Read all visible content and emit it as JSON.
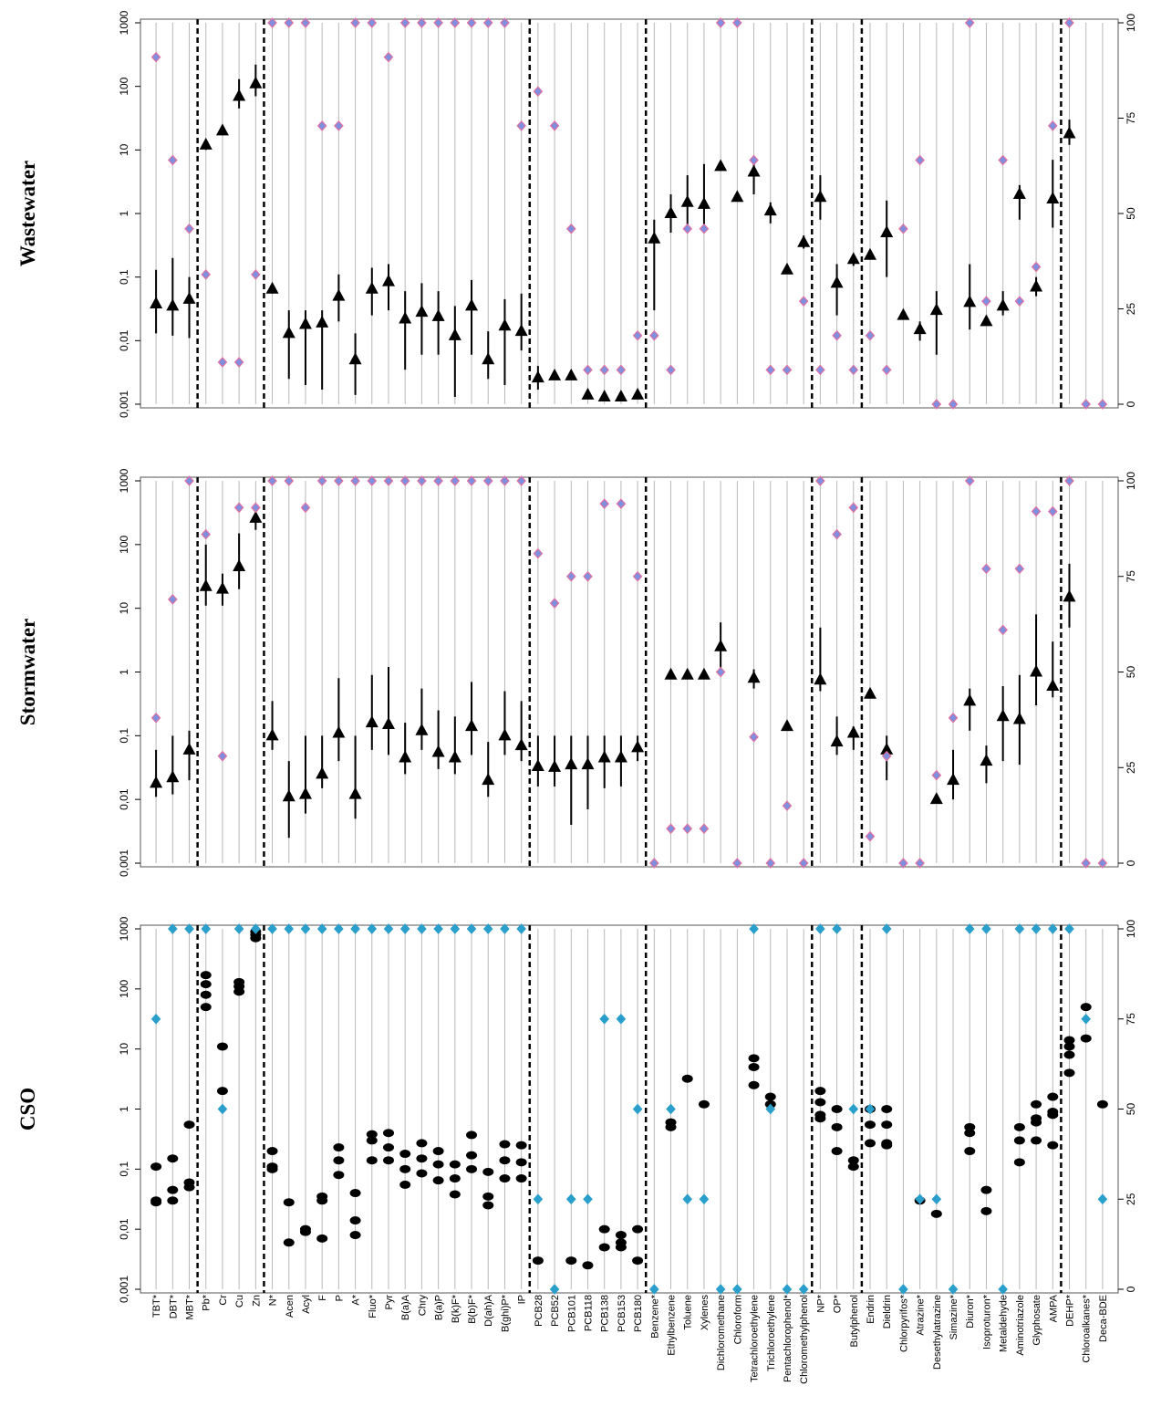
{
  "chart_data": [
    {
      "type": "range",
      "title": "Wastewater",
      "log": true,
      "ylim": [
        0.001,
        1000
      ],
      "yticks": [
        {
          "value": 0.001,
          "label": "0,001"
        },
        {
          "value": 0.01,
          "label": "0,01"
        },
        {
          "value": 0.1,
          "label": "0,1"
        },
        1,
        10,
        100,
        1000
      ],
      "y2lim": [
        0,
        100
      ],
      "y2ticks": [
        0,
        25,
        50,
        75,
        100
      ],
      "group_breaks": [
        3,
        7,
        23,
        30,
        40,
        43,
        55
      ],
      "series": [
        {
          "marker": "triangle",
          "color": "#000000",
          "values": [
            0.038,
            0.035,
            0.045,
            12,
            20,
            70,
            110,
            0.065,
            0.013,
            0.018,
            0.019,
            0.05,
            0.005,
            0.065,
            0.085,
            0.022,
            0.028,
            0.024,
            0.012,
            0.035,
            0.005,
            0.017,
            0.014,
            0.0026,
            0.0028,
            0.0028,
            0.0014,
            0.0013,
            0.0013,
            0.0014,
            0.4,
            1.0,
            1.5,
            1.4,
            5.5,
            1.8,
            4.5,
            1.1,
            0.13,
            0.35,
            1.8,
            0.08,
            0.19,
            0.22,
            0.5,
            0.025,
            0.015,
            0.03,
            null,
            0.04,
            0.02,
            0.035,
            2,
            0.07,
            1.7,
            18,
            null,
            null
          ],
          "max": [
            0.13,
            0.2,
            0.1,
            14,
            24,
            130,
            220,
            0.075,
            0.03,
            0.03,
            0.03,
            0.11,
            0.013,
            0.14,
            0.16,
            0.06,
            0.08,
            0.06,
            0.035,
            0.09,
            0.014,
            0.045,
            0.055,
            0.004,
            null,
            null,
            null,
            null,
            null,
            null,
            0.8,
            2,
            4,
            6,
            null,
            null,
            7,
            1.5,
            null,
            0.45,
            4,
            0.16,
            0.22,
            null,
            1.6,
            null,
            0.02,
            0.06,
            null,
            0.16,
            null,
            0.06,
            2.8,
            0.1,
            7,
            30,
            null,
            null
          ],
          "min": [
            0.013,
            0.012,
            0.011,
            10,
            17,
            45,
            70,
            0.055,
            0.0025,
            0.002,
            0.0017,
            0.02,
            0.0014,
            0.025,
            0.03,
            0.0035,
            0.006,
            0.006,
            0.0013,
            0.006,
            0.0025,
            0.002,
            0.007,
            0.0017,
            null,
            null,
            null,
            null,
            null,
            null,
            0.03,
            0.5,
            0.5,
            0.5,
            null,
            null,
            2,
            0.7,
            null,
            0.28,
            0.8,
            0.025,
            0.15,
            null,
            0.1,
            null,
            0.01,
            0.006,
            null,
            0.015,
            null,
            0.025,
            0.8,
            0.05,
            0.6,
            12,
            null,
            null
          ]
        },
        {
          "marker": "diamond",
          "axis": "y2",
          "color": "#7f8fe0",
          "stroke": "#e070a0",
          "values": [
            91,
            64,
            46,
            34,
            11,
            11,
            34,
            100,
            100,
            100,
            73,
            73,
            100,
            100,
            91,
            100,
            100,
            100,
            100,
            100,
            100,
            100,
            73,
            82,
            73,
            46,
            9,
            9,
            9,
            18,
            18,
            9,
            46,
            46,
            100,
            100,
            64,
            9,
            9,
            27,
            9,
            18,
            9,
            18,
            9,
            46,
            64,
            0,
            0,
            100,
            27,
            64,
            27,
            36,
            73,
            100,
            0,
            0
          ]
        }
      ]
    },
    {
      "type": "range",
      "title": "Stormwater",
      "log": true,
      "ylim": [
        0.001,
        1000
      ],
      "yticks": [
        {
          "value": 0.001,
          "label": "0,001"
        },
        {
          "value": 0.01,
          "label": "0,01"
        },
        {
          "value": 0.1,
          "label": "0,1"
        },
        1,
        10,
        100,
        1000
      ],
      "y2lim": [
        0,
        100
      ],
      "y2ticks": [
        0,
        25,
        50,
        75,
        100
      ],
      "group_breaks": [
        3,
        7,
        23,
        30,
        40,
        43,
        55
      ],
      "series": [
        {
          "marker": "triangle",
          "color": "#000000",
          "values": [
            0.018,
            0.022,
            0.06,
            22,
            20,
            45,
            260,
            0.1,
            0.011,
            0.012,
            0.025,
            0.11,
            0.012,
            0.16,
            0.15,
            0.045,
            0.12,
            0.055,
            0.045,
            0.14,
            0.02,
            0.1,
            0.07,
            0.033,
            0.032,
            0.035,
            0.035,
            0.045,
            0.045,
            0.065,
            null,
            0.9,
            0.9,
            0.9,
            2.5,
            null,
            0.8,
            null,
            0.14,
            null,
            0.75,
            0.08,
            0.11,
            0.45,
            0.06,
            null,
            null,
            0.01,
            0.02,
            0.35,
            0.04,
            0.2,
            0.18,
            1.0,
            0.6,
            15,
            null,
            null
          ],
          "max": [
            0.06,
            0.1,
            0.12,
            100,
            35,
            150,
            400,
            0.35,
            0.04,
            0.1,
            0.1,
            0.8,
            0.1,
            0.9,
            1.2,
            0.16,
            0.55,
            0.25,
            0.2,
            0.7,
            0.08,
            0.5,
            0.35,
            0.1,
            0.1,
            0.1,
            0.1,
            0.1,
            0.1,
            0.1,
            null,
            null,
            null,
            null,
            6,
            null,
            1.1,
            null,
            null,
            null,
            5,
            0.2,
            0.14,
            null,
            0.1,
            null,
            null,
            null,
            0.06,
            0.55,
            0.07,
            0.6,
            0.9,
            8,
            3,
            50,
            null,
            null
          ],
          "min": [
            0.011,
            0.012,
            0.02,
            11,
            11,
            20,
            170,
            0.06,
            0.0025,
            0.006,
            0.015,
            0.04,
            0.005,
            0.06,
            0.05,
            0.025,
            0.06,
            0.03,
            0.025,
            0.05,
            0.011,
            0.05,
            0.04,
            0.016,
            0.016,
            0.004,
            0.007,
            0.015,
            0.016,
            0.04,
            null,
            null,
            null,
            null,
            1,
            null,
            0.55,
            null,
            null,
            null,
            0.5,
            0.05,
            0.06,
            null,
            0.02,
            null,
            null,
            null,
            0.01,
            0.12,
            0.018,
            0.04,
            0.035,
            0.3,
            0.4,
            5,
            null,
            null
          ]
        },
        {
          "marker": "diamond",
          "axis": "y2",
          "color": "#7f8fe0",
          "stroke": "#e070a0",
          "values": [
            38,
            69,
            100,
            86,
            28,
            93,
            93,
            100,
            100,
            93,
            100,
            100,
            100,
            100,
            100,
            100,
            100,
            100,
            100,
            100,
            100,
            100,
            100,
            81,
            68,
            75,
            75,
            94,
            94,
            75,
            0,
            9,
            9,
            9,
            50,
            0,
            33,
            0,
            15,
            0,
            100,
            86,
            93,
            7,
            28,
            0,
            0,
            23,
            38,
            100,
            77,
            61,
            77,
            92,
            92,
            100,
            0,
            0
          ]
        }
      ]
    },
    {
      "type": "dots",
      "title": "CSO",
      "log": true,
      "ylim": [
        0.001,
        1000
      ],
      "yticks": [
        {
          "value": 0.001,
          "label": "0,001"
        },
        {
          "value": 0.01,
          "label": "0,01"
        },
        {
          "value": 0.1,
          "label": "0,1"
        },
        1,
        10,
        100,
        1000
      ],
      "y2lim": [
        0,
        100
      ],
      "y2ticks": [
        0,
        25,
        50,
        75,
        100
      ],
      "group_breaks": [
        3,
        7,
        23,
        30,
        40,
        43,
        55
      ],
      "categories": [
        "TBT*",
        "DBT*",
        "MBT*",
        "Pb*",
        "Cr",
        "Cu",
        "Zn",
        "N*",
        "Acen",
        "Acyl",
        "F",
        "P",
        "A*",
        "Fluo*",
        "Pyr",
        "B(a)A",
        "Chry",
        "B(a)P",
        "B(k)F*",
        "B(b)F*",
        "D(ah)A",
        "B(ghi)P*",
        "IP",
        "PCB28",
        "PCB52",
        "PCB101",
        "PCB118",
        "PCB138",
        "PCB153",
        "PCB180",
        "Benzene*",
        "Ethylbenzene",
        "Toluene",
        "Xylenes",
        "Dichloromethane",
        "Chloroform",
        "Tetrachloroethylene",
        "Trichloroethylene",
        "Pentachlorophenol*",
        "Chloromethylphenol",
        "NP*",
        "OP*",
        "Butylphenol",
        "Endrin",
        "Dieldrin",
        "Chlorpyrifos*",
        "Atrazine*",
        "Desethylatrazine",
        "Simazine*",
        "Diuron*",
        "Isoproturon*",
        "Metaldehyde",
        "Aminotriazole",
        "Glyphosate",
        "AMPA",
        "DEHP*",
        "Chloroalkanes*",
        "Deca-BDE"
      ],
      "series": [
        {
          "marker": "dot",
          "color": "#000000",
          "values": [
            [
              0.11,
              0.03,
              0.028
            ],
            [
              0.15,
              0.045,
              0.03
            ],
            [
              0.55,
              0.06,
              0.05
            ],
            [
              170,
              120,
              80,
              50
            ],
            [
              11,
              2
            ],
            [
              130,
              110,
              90
            ],
            [
              900,
              800,
              700
            ],
            [
              0.2,
              0.11,
              0.1
            ],
            [
              0.028,
              0.006
            ],
            [
              0.01,
              0.009
            ],
            [
              0.035,
              0.03,
              0.007
            ],
            [
              0.23,
              0.14,
              0.08
            ],
            [
              0.04,
              0.014,
              0.008
            ],
            [
              0.38,
              0.3,
              0.14
            ],
            [
              0.4,
              0.23,
              0.14
            ],
            [
              0.18,
              0.1,
              0.055
            ],
            [
              0.27,
              0.15,
              0.085
            ],
            [
              0.2,
              0.12,
              0.065
            ],
            [
              0.12,
              0.07,
              0.038
            ],
            [
              0.37,
              0.17,
              0.1
            ],
            [
              0.09,
              0.035,
              0.025
            ],
            [
              0.26,
              0.14,
              0.07
            ],
            [
              0.25,
              0.13,
              0.07
            ],
            [
              0.003
            ],
            null,
            [
              0.003
            ],
            [
              0.0025
            ],
            [
              0.01,
              0.005
            ],
            [
              0.008,
              0.006,
              0.005
            ],
            [
              0.01,
              0.003
            ],
            null,
            [
              0.6,
              0.5
            ],
            [
              3.2
            ],
            [
              1.2
            ],
            null,
            null,
            [
              7,
              5,
              2.5
            ],
            [
              1.6,
              1.2
            ],
            null,
            null,
            [
              2,
              1.3,
              0.8,
              0.7
            ],
            [
              1,
              0.5,
              0.2
            ],
            [
              0.14,
              0.11
            ],
            [
              1,
              0.55,
              0.27
            ],
            [
              1,
              0.55,
              0.27,
              0.25
            ],
            null,
            [
              0.03
            ],
            [
              0.018
            ],
            null,
            [
              0.5,
              0.4,
              0.2
            ],
            [
              0.045,
              0.02
            ],
            null,
            [
              0.5,
              0.3,
              0.13
            ],
            [
              1.2,
              0.7,
              0.6,
              0.3
            ],
            [
              1.6,
              0.9,
              0.8,
              0.25
            ],
            [
              14,
              11,
              8,
              4
            ],
            [
              50,
              15
            ],
            [
              1.2
            ]
          ]
        },
        {
          "marker": "diamond",
          "axis": "y2",
          "color": "#2b9fcb",
          "stroke": "#2b9fcb",
          "values": [
            75,
            100,
            100,
            100,
            50,
            100,
            100,
            100,
            100,
            100,
            100,
            100,
            100,
            100,
            100,
            100,
            100,
            100,
            100,
            100,
            100,
            100,
            100,
            25,
            0,
            25,
            25,
            75,
            75,
            50,
            0,
            50,
            25,
            25,
            0,
            0,
            100,
            50,
            0,
            0,
            100,
            100,
            50,
            50,
            100,
            0,
            25,
            25,
            0,
            100,
            100,
            0,
            100,
            100,
            100,
            100,
            75,
            25
          ]
        }
      ]
    }
  ]
}
